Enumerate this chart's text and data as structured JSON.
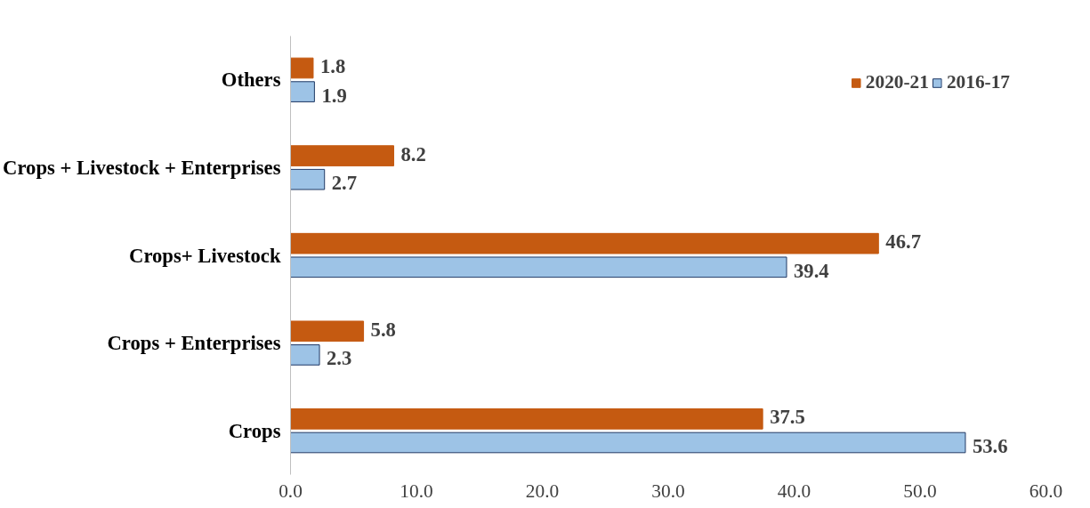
{
  "chart_data": {
    "type": "bar",
    "orientation": "horizontal",
    "categories": [
      "Others",
      "Crops + Livestock + Enterprises",
      "Crops+ Livestock",
      "Crops + Enterprises",
      "Crops"
    ],
    "series": [
      {
        "name": "2020-21",
        "color": "#c55a11",
        "values": [
          1.8,
          8.2,
          46.7,
          5.8,
          37.5
        ]
      },
      {
        "name": "2016-17",
        "color": "#9dc3e6",
        "values": [
          1.9,
          2.7,
          39.4,
          2.3,
          53.6
        ]
      }
    ],
    "xlim": [
      0,
      60
    ],
    "xticks": [
      {
        "value": 0,
        "label": "0.0"
      },
      {
        "value": 10,
        "label": "10.0"
      },
      {
        "value": 20,
        "label": "20.0"
      },
      {
        "value": 30,
        "label": "30.0"
      },
      {
        "value": 40,
        "label": "40.0"
      },
      {
        "value": 50,
        "label": "50.0"
      },
      {
        "value": 60,
        "label": "60.0"
      }
    ],
    "data_labels": true,
    "legend": "top right",
    "grid": false
  }
}
